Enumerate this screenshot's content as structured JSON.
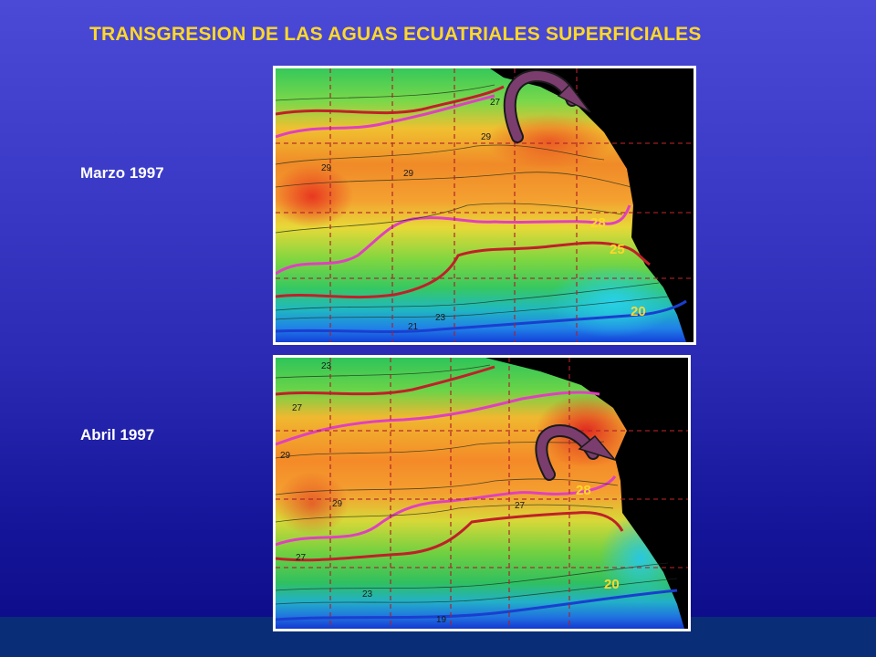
{
  "title": "TRANSGRESION DE LAS AGUAS ECUATRIALES SUPERFICIALES",
  "maps": [
    {
      "label": "Marzo 1997",
      "contour_labels": [
        "28",
        "25",
        "20"
      ],
      "isoline_numbers": [
        "29",
        "29",
        "29",
        "27",
        "23",
        "21"
      ]
    },
    {
      "label": "Abril 1997",
      "contour_labels": [
        "28",
        "20"
      ],
      "isoline_numbers": [
        "23",
        "27",
        "29",
        "29",
        "27",
        "27",
        "23",
        "19"
      ]
    }
  ],
  "colors": {
    "background_top": "#4a4ad6",
    "background_bottom": "#0b0b86",
    "title": "#ffd82a",
    "label": "#ffffff",
    "warm_contour": "#e040c0",
    "mid_contour": "#c0202a",
    "cold_contour": "#1a3fd0",
    "arrow": "#7a3d6e"
  }
}
